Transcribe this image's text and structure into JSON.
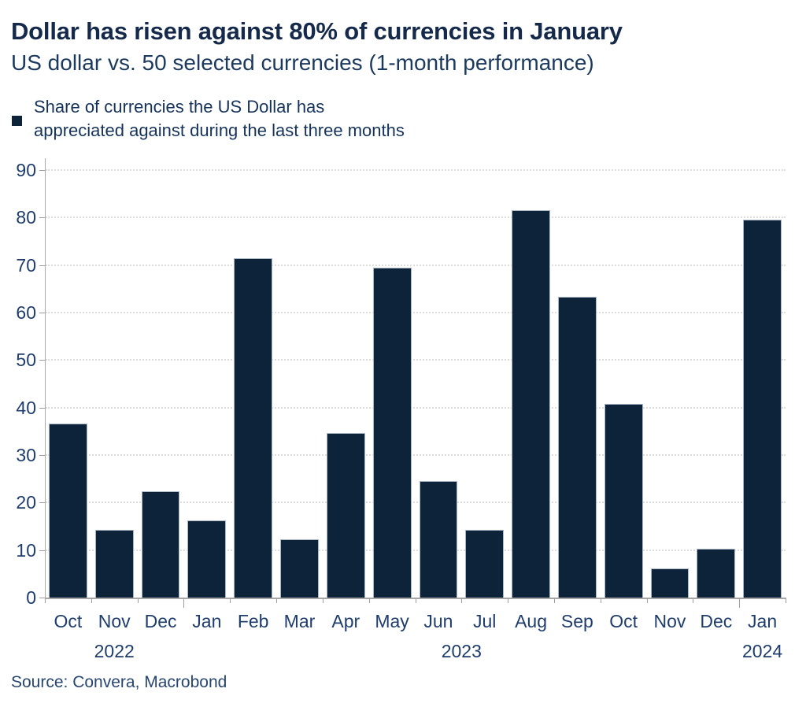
{
  "header": {
    "title": "Dollar has risen against 80% of currencies in January",
    "subtitle": "US dollar vs. 50 selected currencies (1-month performance)"
  },
  "legend": {
    "marker_color": "#0d2339",
    "label_line1": "Share of currencies the US Dollar has",
    "label_line2": "appreciated against during the last three months"
  },
  "source": "Source: Convera, Macrobond",
  "colors": {
    "bar_fill": "#0d2339",
    "bar_border": "#a9b7c4",
    "title_text": "#15294b",
    "axis_label_text": "#1e3d6d",
    "gridline": "#dcdcdc",
    "axis_line": "#a6a6a6"
  },
  "chart_data": {
    "type": "bar",
    "title": "Dollar has risen against 80% of currencies in January",
    "subtitle": "US dollar vs. 50 selected currencies (1-month performance)",
    "series_name": "Share of currencies the US Dollar has appreciated against during the last three months",
    "categories": [
      "Oct",
      "Nov",
      "Dec",
      "Jan",
      "Feb",
      "Mar",
      "Apr",
      "May",
      "Jun",
      "Jul",
      "Aug",
      "Sep",
      "Oct",
      "Nov",
      "Dec",
      "Jan"
    ],
    "values": [
      36.7,
      14.3,
      22.4,
      16.3,
      71.4,
      12.2,
      34.7,
      69.4,
      24.5,
      14.3,
      81.6,
      63.3,
      40.8,
      6.1,
      10.2,
      79.6
    ],
    "year_groups": [
      {
        "label": "2022",
        "start": 0,
        "count": 3
      },
      {
        "label": "2023",
        "start": 3,
        "count": 12
      },
      {
        "label": "2024",
        "start": 15,
        "count": 1
      }
    ],
    "ylim": [
      0,
      90
    ],
    "ytick_step": 10,
    "grid": "horizontal-dotted",
    "legend_position": "top-left"
  }
}
